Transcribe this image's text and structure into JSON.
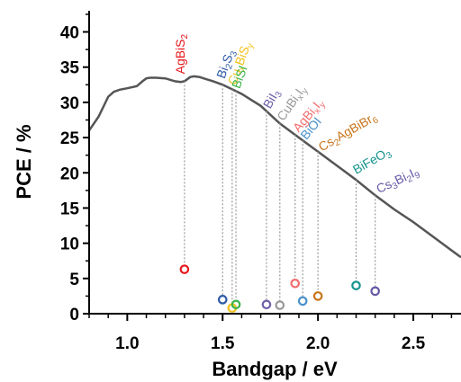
{
  "chart_data": {
    "type": "scatter",
    "xlabel": "Bandgap / eV",
    "ylabel": "PCE / %",
    "xlim": [
      0.8,
      2.75
    ],
    "ylim": [
      0,
      43
    ],
    "xticks": [
      "1.0",
      "1.5",
      "2.0",
      "2.5"
    ],
    "yticks": [
      "0",
      "5",
      "10",
      "15",
      "20",
      "25",
      "30",
      "35",
      "40"
    ],
    "limit_curve": {
      "x": [
        0.8,
        0.85,
        0.9,
        0.93,
        0.96,
        1.0,
        1.05,
        1.08,
        1.1,
        1.12,
        1.15,
        1.2,
        1.25,
        1.28,
        1.3,
        1.33,
        1.35,
        1.38,
        1.4,
        1.45,
        1.5,
        1.6,
        1.7,
        1.8,
        1.9,
        2.0,
        2.1,
        2.2,
        2.3,
        2.4,
        2.5,
        2.6,
        2.7,
        2.75
      ],
      "y": [
        26.0,
        28.0,
        30.8,
        31.5,
        31.8,
        32.0,
        32.3,
        33.0,
        33.4,
        33.5,
        33.5,
        33.4,
        33.0,
        32.9,
        33.0,
        33.6,
        33.7,
        33.6,
        33.4,
        33.0,
        32.5,
        31.2,
        29.5,
        27.0,
        25.0,
        23.0,
        21.0,
        19.0,
        16.8,
        14.8,
        13.0,
        11.0,
        9.0,
        8.0
      ]
    },
    "points": [
      {
        "name": "AgBiS2",
        "label_main": "AgBiS",
        "label_sub": "2",
        "x": 1.3,
        "y": 6.3,
        "color": "#e8161b"
      },
      {
        "name": "Bi2S3",
        "label_main": "Bi",
        "label_sub": "2",
        "label_main2": "S",
        "label_sub2": "3",
        "x": 1.5,
        "y": 2.0,
        "color": "#2e5aa6"
      },
      {
        "name": "CuxBiSy",
        "label_main": "Cu",
        "label_sub": "x",
        "label_main2": "BiS",
        "label_sub2": "y",
        "x": 1.55,
        "y": 0.8,
        "color": "#f2c21b"
      },
      {
        "name": "BiSI",
        "label_main": "BiSI",
        "x": 1.57,
        "y": 1.3,
        "color": "#3ab54a"
      },
      {
        "name": "BiI3",
        "label_main": "BiI",
        "label_sub": "3",
        "x": 1.73,
        "y": 1.3,
        "color": "#6f5fa8"
      },
      {
        "name": "CuBixIy",
        "label_main": "CuBi",
        "label_sub": "x",
        "label_main2": "I",
        "label_sub2": "y",
        "x": 1.8,
        "y": 1.2,
        "color": "#999999"
      },
      {
        "name": "AgBixIy",
        "label_main": "AgBi",
        "label_sub": "x",
        "label_main2": "I",
        "label_sub2": "y",
        "x": 1.88,
        "y": 4.3,
        "color": "#f26d6d"
      },
      {
        "name": "BiOI",
        "label_main": "BiOI",
        "x": 1.92,
        "y": 1.8,
        "color": "#4a90c8"
      },
      {
        "name": "Cs2AgBiBr6",
        "label_main": "Cs",
        "label_sub": "2",
        "label_main2": "AgBiBr",
        "label_sub2": "6",
        "x": 2.0,
        "y": 2.5,
        "color": "#c8741b"
      },
      {
        "name": "BiFeO3",
        "label_main": "BiFeO",
        "label_sub": "3",
        "x": 2.2,
        "y": 4.0,
        "color": "#16958e"
      },
      {
        "name": "Cs3Bi2I9",
        "label_main": "Cs",
        "label_sub": "3",
        "label_main2": "Bi",
        "label_sub2": "2",
        "label_main3": "I",
        "label_sub3": "9",
        "x": 2.3,
        "y": 3.2,
        "color": "#6759a6"
      }
    ]
  }
}
